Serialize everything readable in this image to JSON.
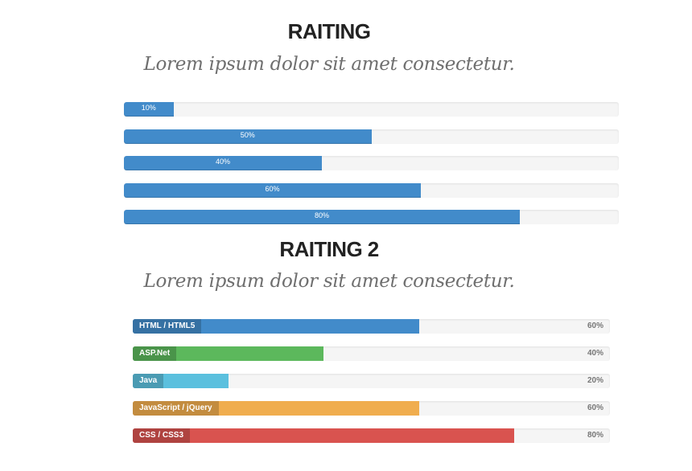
{
  "section1": {
    "title": "RAITING",
    "subtitle": "Lorem ipsum dolor sit amet consectetur.",
    "bars": [
      {
        "label": "10%",
        "value": 10
      },
      {
        "label": "50%",
        "value": 50
      },
      {
        "label": "40%",
        "value": 40
      },
      {
        "label": "60%",
        "value": 60
      },
      {
        "label": "80%",
        "value": 80
      }
    ],
    "color": "#428bca"
  },
  "section2": {
    "title": "RAITING 2",
    "subtitle": "Lorem ipsum dolor sit amet consectetur.",
    "bars": [
      {
        "name": "HTML / HTML5",
        "label": "60%",
        "value": 60,
        "color": "#428bca",
        "tag_color": "#3671a3"
      },
      {
        "name": "ASP.Net",
        "label": "40%",
        "value": 40,
        "color": "#5cb85c",
        "tag_color": "#4a944a"
      },
      {
        "name": "Java",
        "label": "20%",
        "value": 20,
        "color": "#5bc0de",
        "tag_color": "#4a9bb3"
      },
      {
        "name": "JavaScript / jQuery",
        "label": "60%",
        "value": 60,
        "color": "#f0ad4e",
        "tag_color": "#c38c3f"
      },
      {
        "name": "CSS / CSS3",
        "label": "80%",
        "value": 80,
        "color": "#d9534f",
        "tag_color": "#af4340"
      }
    ]
  }
}
